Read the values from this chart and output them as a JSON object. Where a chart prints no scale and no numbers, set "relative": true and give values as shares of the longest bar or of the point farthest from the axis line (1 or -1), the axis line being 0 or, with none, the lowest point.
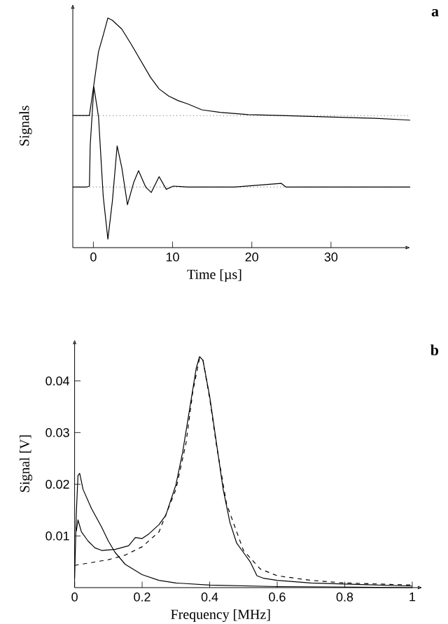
{
  "chart_data": [
    {
      "type": "line",
      "relative": true,
      "tick_labels": "x",
      "xlabel": "Time [µs]",
      "ylabel": "Signals",
      "xlim": [
        -2.6,
        40
      ],
      "xticks": [
        0,
        10,
        20,
        30
      ],
      "annotations": [
        "a"
      ],
      "series": [
        {
          "color": "#000000",
          "line_style": "solid",
          "x": [
            -2.6,
            -0.5,
            0.06,
            0.65,
            1.24,
            1.83,
            2.4,
            3.6,
            4.8,
            6.0,
            7.2,
            8.3,
            9.5,
            10.7,
            11.9,
            13.7,
            16.0,
            19.6,
            23.7,
            29.6,
            35.6,
            40
          ],
          "values": [
            0.575,
            0.575,
            0.71,
            0.854,
            0.925,
            1.0,
            0.99,
            0.951,
            0.884,
            0.813,
            0.742,
            0.691,
            0.66,
            0.64,
            0.626,
            0.6,
            0.589,
            0.579,
            0.575,
            0.569,
            0.563,
            0.555
          ]
        },
        {
          "color": "#000000",
          "line_style": "solid",
          "x": [
            -2.6,
            -0.8,
            -0.5,
            -0.4,
            0.06,
            0.65,
            1.24,
            1.83,
            2.4,
            3.0,
            3.6,
            4.3,
            5.1,
            5.7,
            6.6,
            7.3,
            8.3,
            9.2,
            10.1,
            11.9,
            17.8,
            23.7,
            24.3,
            29.6,
            40
          ],
          "values": [
            0.264,
            0.264,
            0.268,
            0.447,
            0.7,
            0.569,
            0.224,
            0.037,
            0.203,
            0.443,
            0.346,
            0.187,
            0.285,
            0.335,
            0.264,
            0.24,
            0.309,
            0.254,
            0.268,
            0.264,
            0.264,
            0.28,
            0.264,
            0.264,
            0.264
          ]
        }
      ],
      "ref_lines": [
        {
          "axis": "y",
          "value": 0.575,
          "line_style": "dotted"
        },
        {
          "axis": "y",
          "value": 0.264,
          "line_style": "dotted"
        }
      ]
    },
    {
      "type": "line",
      "xlabel": "Frequency [MHz]",
      "ylabel": "Signal [V]",
      "xlim": [
        0,
        1.03
      ],
      "ylim": [
        0,
        0.048
      ],
      "xticks": [
        0,
        0.2,
        0.4,
        0.6,
        0.8,
        1
      ],
      "yticks": [
        0.01,
        0.02,
        0.03,
        0.04
      ],
      "annotations": [
        "b"
      ],
      "series": [
        {
          "color": "#000000",
          "line_style": "solid",
          "x": [
            0.005,
            0.01,
            0.02,
            0.04,
            0.06,
            0.08,
            0.12,
            0.16,
            0.18,
            0.2,
            0.22,
            0.25,
            0.27,
            0.3,
            0.32,
            0.34,
            0.36,
            0.37,
            0.38,
            0.4,
            0.42,
            0.44,
            0.46,
            0.48,
            0.5,
            0.52,
            0.54,
            0.56,
            0.6,
            0.7,
            0.8,
            0.9,
            1.0
          ],
          "values": [
            0.0109,
            0.0131,
            0.0108,
            0.009,
            0.0077,
            0.0072,
            0.0074,
            0.0081,
            0.0097,
            0.0095,
            0.0104,
            0.0122,
            0.014,
            0.0199,
            0.0262,
            0.0343,
            0.0424,
            0.0447,
            0.044,
            0.037,
            0.028,
            0.019,
            0.0126,
            0.0086,
            0.0068,
            0.005,
            0.0023,
            0.0018,
            0.0014,
            0.0009,
            0.0007,
            0.0005,
            0.0003
          ]
        },
        {
          "color": "#000000",
          "line_style": "dashed",
          "x": [
            0,
            0.1,
            0.15,
            0.2,
            0.25,
            0.3,
            0.33,
            0.35,
            0.37,
            0.38,
            0.4,
            0.42,
            0.45,
            0.5,
            0.55,
            0.6,
            0.7,
            0.8,
            1.0
          ],
          "values": [
            0.0043,
            0.0054,
            0.0063,
            0.0079,
            0.0108,
            0.019,
            0.028,
            0.0379,
            0.0444,
            0.0441,
            0.0366,
            0.0276,
            0.0162,
            0.0072,
            0.0036,
            0.0023,
            0.0014,
            0.0009,
            0.0005
          ]
        },
        {
          "color": "#000000",
          "line_style": "solid",
          "x": [
            0.0,
            0.005,
            0.01,
            0.015,
            0.025,
            0.05,
            0.08,
            0.1,
            0.12,
            0.15,
            0.2,
            0.25,
            0.3,
            0.4,
            0.6,
            1.0
          ],
          "values": [
            0.0018,
            0.0144,
            0.0217,
            0.0221,
            0.019,
            0.0153,
            0.0117,
            0.009,
            0.0068,
            0.0045,
            0.0025,
            0.0014,
            0.0009,
            0.0005,
            0.0002,
            0.0
          ]
        }
      ]
    }
  ]
}
